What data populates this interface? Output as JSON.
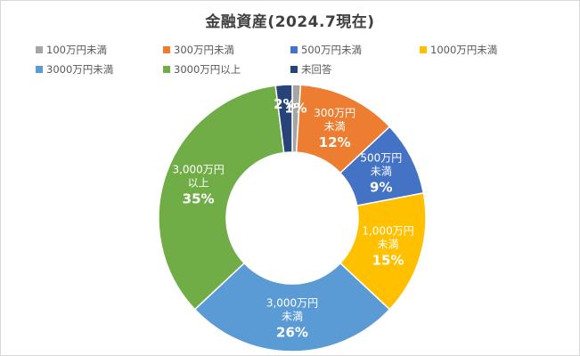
{
  "chart_data": {
    "type": "pie",
    "donut": true,
    "title": "金融資産(2024.7現在)",
    "legend_position": "top",
    "categories": [
      "100万円未満",
      "300万円未満",
      "500万円未満",
      "1000万円未満",
      "3000万円未満",
      "3000万円以上",
      "未回答"
    ],
    "values": [
      1,
      12,
      9,
      15,
      26,
      35,
      2
    ],
    "slice_labels": [
      {
        "name": "",
        "value": "1%"
      },
      {
        "name": "300万円\n未満",
        "value": "12%"
      },
      {
        "name": "500万円\n未満",
        "value": "9%"
      },
      {
        "name": "1,000万円\n未満",
        "value": "15%"
      },
      {
        "name": "3,000万円\n未満",
        "value": "26%"
      },
      {
        "name": "3,000万円\n以上",
        "value": "35%"
      },
      {
        "name": "",
        "value": "2%"
      }
    ],
    "colors": [
      "#a5a5a5",
      "#ed7d31",
      "#4472c4",
      "#ffc000",
      "#5b9bd5",
      "#70ad47",
      "#264478"
    ]
  }
}
